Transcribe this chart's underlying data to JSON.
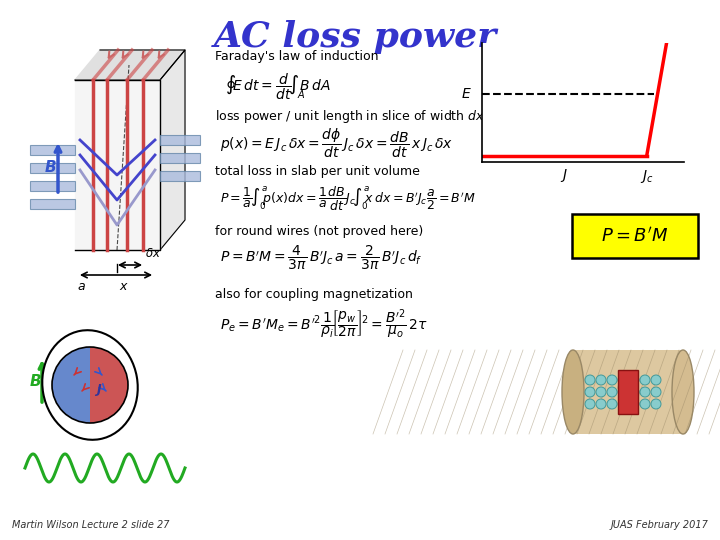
{
  "title": "AC loss power",
  "title_color": "#3333cc",
  "title_fontsize": 26,
  "background_color": "#ffffff",
  "text_color": "#000000",
  "footer_left": "Martin Wilson Lecture 2 slide 27",
  "footer_right": "JUAS February 2017",
  "faraday_label": "Faraday's law of induction",
  "loss_label": "loss power / unit length in slice of width $dx$",
  "total_label": "total loss in slab per unit volume",
  "round_label": "for round wires (not proved here)",
  "coupling_label": "also for coupling magnetization",
  "pbm_box_color": "#ffff00",
  "pbm_text": "$P = B^{\\prime}M$",
  "pbm_text_color": "#000000",
  "label_fontsize": 9,
  "eq_fontsize": 10,
  "small_eq_fontsize": 9
}
